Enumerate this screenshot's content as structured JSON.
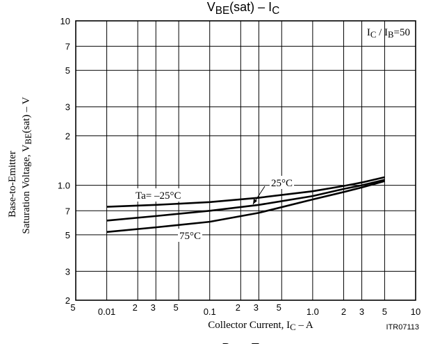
{
  "chart_data": {
    "type": "line",
    "title": [
      {
        "text": "V"
      },
      {
        "text": "BE",
        "sub": true
      },
      {
        "text": "(sat) – I"
      },
      {
        "text": "C",
        "sub": true
      }
    ],
    "next_title": [
      {
        "text": "P"
      },
      {
        "text": "C",
        "sub": true
      },
      {
        "text": " – Ta"
      }
    ],
    "x_label": [
      {
        "text": "Collector Current, I"
      },
      {
        "text": "C",
        "sub": true
      },
      {
        "text": " – A"
      }
    ],
    "y_label": [
      [
        {
          "text": "Base-to-Emitter"
        }
      ],
      [
        {
          "text": "Saturation Voltage, V"
        },
        {
          "text": "BE",
          "sub": true
        },
        {
          "text": "(sat)  – V"
        }
      ]
    ],
    "condition": [
      {
        "text": "I"
      },
      {
        "text": "C",
        "sub": true
      },
      {
        "text": " / I"
      },
      {
        "text": "B",
        "sub": true
      },
      {
        "text": "=50"
      }
    ],
    "figure_id": "ITR07113",
    "log_x": true,
    "log_y": true,
    "grid": true,
    "xlim": [
      0.005,
      10
    ],
    "ylim": [
      0.2,
      10
    ],
    "xticks": [
      {
        "value": 0.005,
        "label": "5"
      },
      0.01,
      {
        "value": 0.02,
        "label": "2"
      },
      {
        "value": 0.03,
        "label": "3"
      },
      {
        "value": 0.05,
        "label": "5"
      },
      0.1,
      {
        "value": 0.2,
        "label": "2"
      },
      {
        "value": 0.3,
        "label": "3"
      },
      {
        "value": 0.5,
        "label": "5"
      },
      {
        "value": 1,
        "label": "1.0"
      },
      2,
      3,
      5,
      10
    ],
    "yticks": [
      {
        "value": 0.2,
        "label": "2"
      },
      {
        "value": 0.3,
        "label": "3"
      },
      {
        "value": 0.5,
        "label": "5"
      },
      {
        "value": 0.7,
        "label": "7"
      },
      {
        "value": 1,
        "label": "1.0"
      },
      2,
      3,
      5,
      7,
      10
    ],
    "x": [
      0.01,
      0.03,
      0.1,
      0.3,
      1,
      2,
      3,
      5
    ],
    "series": [
      {
        "name": "Ta= –25°C",
        "color": "#000000",
        "values": [
          0.74,
          0.76,
          0.79,
          0.84,
          0.92,
          0.99,
          1.04,
          1.12
        ]
      },
      {
        "name": "25°C",
        "color": "#000000",
        "values": [
          0.61,
          0.65,
          0.7,
          0.76,
          0.86,
          0.95,
          1.0,
          1.08
        ]
      },
      {
        "name": "75°C",
        "color": "#000000",
        "values": [
          0.52,
          0.555,
          0.6,
          0.68,
          0.82,
          0.91,
          0.97,
          1.06
        ]
      }
    ]
  }
}
